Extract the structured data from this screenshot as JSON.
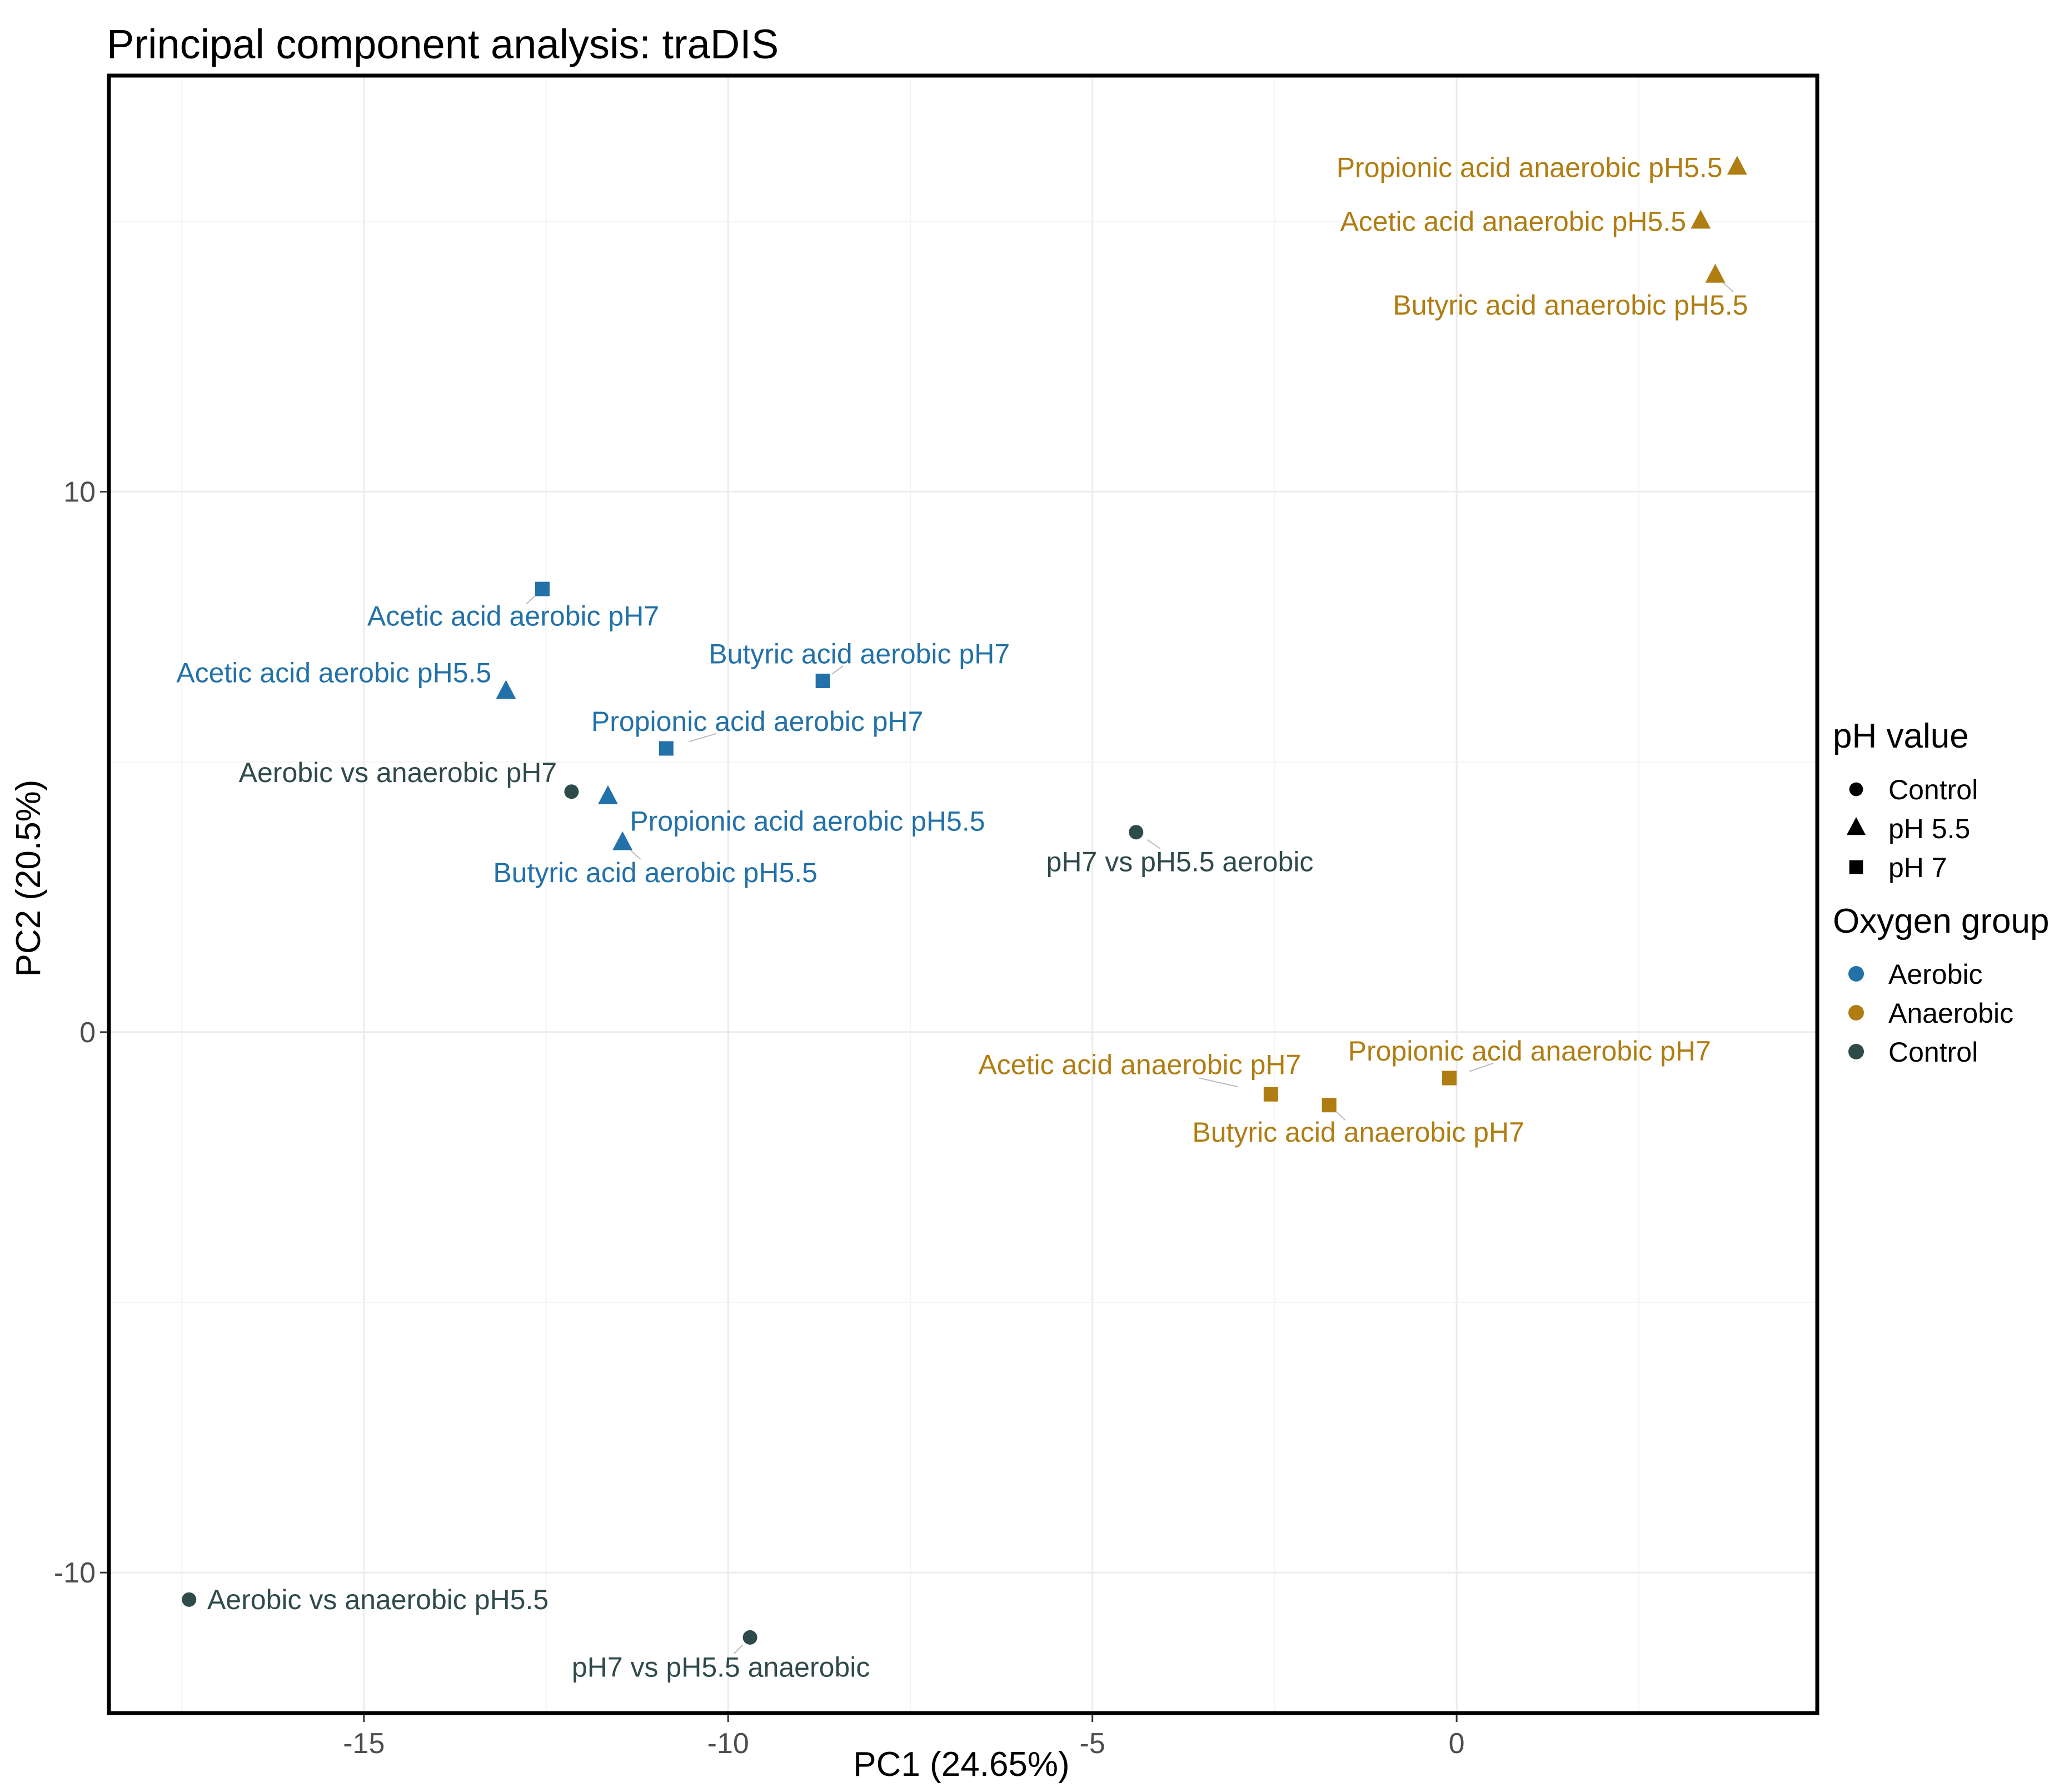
{
  "chart_data": {
    "type": "scatter",
    "title": "Principal component analysis: traDIS",
    "xlabel": "PC1 (24.65%)",
    "ylabel": "PC2 (20.5%)",
    "xlim": [
      -18.5,
      4.95
    ],
    "ylim": [
      -12.6,
      17.7
    ],
    "xticks": [
      -15,
      -10,
      -5,
      0
    ],
    "yticks": [
      -10,
      0,
      10
    ],
    "grid": true,
    "colors": {
      "Aerobic": "#2271a8",
      "Anaerobic": "#b07d12",
      "Control": "#2f4a4a"
    },
    "points": [
      {
        "label": "Propionic acid anaerobic pH5.5",
        "pc1": 3.85,
        "pc2": 16.0,
        "shape": "pH 5.5",
        "group": "Anaerobic",
        "anchor": "end",
        "dx": -0.2,
        "dy": 0.0
      },
      {
        "label": "Acetic acid anaerobic pH5.5",
        "pc1": 3.35,
        "pc2": 15.0,
        "shape": "pH 5.5",
        "group": "Anaerobic",
        "anchor": "end",
        "dx": -0.2,
        "dy": 0.0
      },
      {
        "label": "Butyric acid anaerobic pH5.5",
        "pc1": 3.55,
        "pc2": 14.0,
        "shape": "pH 5.5",
        "group": "Anaerobic",
        "anchor": "end",
        "dx": 0.45,
        "dy": -0.55
      },
      {
        "label": "Acetic acid aerobic pH7",
        "pc1": -12.55,
        "pc2": 8.2,
        "shape": "pH 7",
        "group": "Aerobic",
        "anchor": "middle",
        "dx": -0.4,
        "dy": -0.5
      },
      {
        "label": "Butyric acid aerobic pH7",
        "pc1": -8.7,
        "pc2": 6.5,
        "shape": "pH 7",
        "group": "Aerobic",
        "anchor": "middle",
        "dx": 0.5,
        "dy": 0.5
      },
      {
        "label": "Acetic acid aerobic pH5.5",
        "pc1": -13.05,
        "pc2": 6.3,
        "shape": "pH 5.5",
        "group": "Aerobic",
        "anchor": "end",
        "dx": -0.2,
        "dy": 0.35
      },
      {
        "label": "Propionic acid aerobic pH7",
        "pc1": -10.85,
        "pc2": 5.25,
        "shape": "pH 7",
        "group": "Aerobic",
        "anchor": "middle",
        "dx": 1.25,
        "dy": 0.5
      },
      {
        "label": "Aerobic vs anaerobic pH7",
        "pc1": -12.15,
        "pc2": 4.45,
        "shape": "Control",
        "group": "Control",
        "anchor": "end",
        "dx": -0.2,
        "dy": 0.35
      },
      {
        "label": "Propionic acid aerobic pH5.5",
        "pc1": -11.65,
        "pc2": 4.35,
        "shape": "pH 5.5",
        "group": "Aerobic",
        "anchor": "start",
        "dx": 0.3,
        "dy": -0.45
      },
      {
        "label": "Butyric acid aerobic pH5.5",
        "pc1": -11.45,
        "pc2": 3.5,
        "shape": "pH 5.5",
        "group": "Aerobic",
        "anchor": "middle",
        "dx": 0.45,
        "dy": -0.55
      },
      {
        "label": "pH7 vs pH5.5 aerobic",
        "pc1": -4.4,
        "pc2": 3.7,
        "shape": "Control",
        "group": "Control",
        "anchor": "middle",
        "dx": 0.6,
        "dy": -0.55
      },
      {
        "label": "Propionic acid anaerobic pH7",
        "pc1": -0.1,
        "pc2": -0.85,
        "shape": "pH 7",
        "group": "Anaerobic",
        "anchor": "middle",
        "dx": 1.1,
        "dy": 0.5
      },
      {
        "label": "Acetic acid anaerobic pH7",
        "pc1": -2.55,
        "pc2": -1.15,
        "shape": "pH 7",
        "group": "Anaerobic",
        "anchor": "middle",
        "dx": -1.8,
        "dy": 0.55
      },
      {
        "label": "Butyric acid anaerobic pH7",
        "pc1": -1.75,
        "pc2": -1.35,
        "shape": "pH 7",
        "group": "Anaerobic",
        "anchor": "middle",
        "dx": 0.4,
        "dy": -0.5
      },
      {
        "label": "Aerobic vs anaerobic pH5.5",
        "pc1": -17.4,
        "pc2": -10.5,
        "shape": "Control",
        "group": "Control",
        "anchor": "start",
        "dx": 0.25,
        "dy": 0.0
      },
      {
        "label": "pH7 vs pH5.5 anaerobic",
        "pc1": -9.7,
        "pc2": -11.2,
        "shape": "Control",
        "group": "Control",
        "anchor": "middle",
        "dx": -0.4,
        "dy": -0.55
      }
    ]
  },
  "legend": {
    "shape_title": "pH value",
    "shape_items": [
      {
        "label": "Control",
        "shape": "Control"
      },
      {
        "label": "pH 5.5",
        "shape": "pH 5.5"
      },
      {
        "label": "pH 7",
        "shape": "pH 7"
      }
    ],
    "color_title": "Oxygen group",
    "color_items": [
      {
        "label": "Aerobic",
        "group": "Aerobic"
      },
      {
        "label": "Anaerobic",
        "group": "Anaerobic"
      },
      {
        "label": "Control",
        "group": "Control"
      }
    ]
  }
}
